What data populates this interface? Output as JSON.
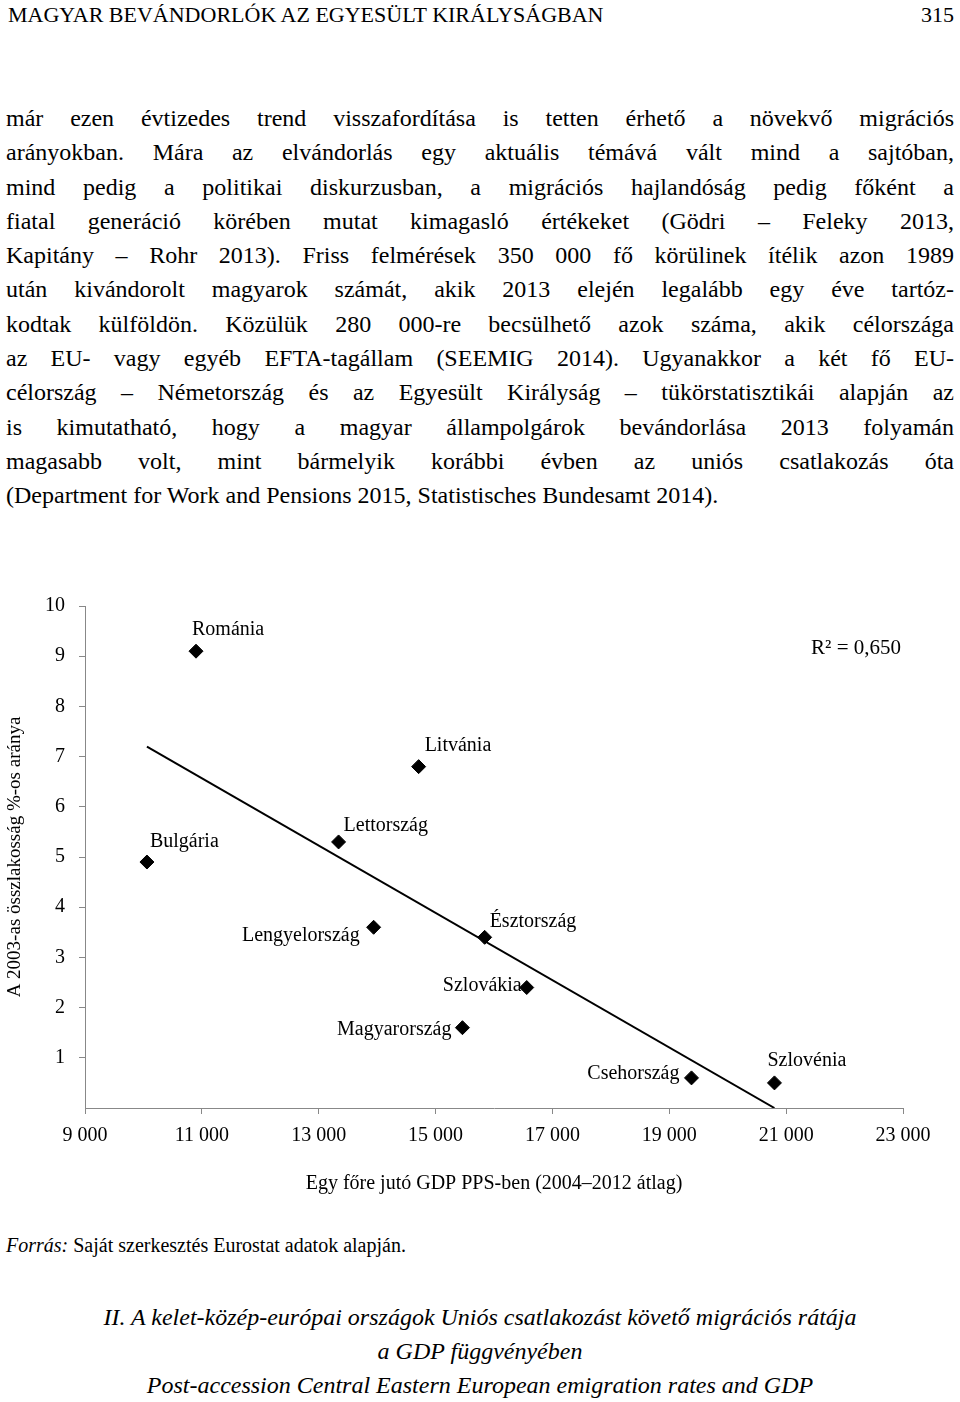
{
  "header": {
    "title": "MAGYAR BEVÁNDORLÓK AZ EGYESÜLT KIRÁLYSÁGBAN",
    "page": "315"
  },
  "body_lines": [
    "már ezen évtizedes trend visszafordítása is tetten érhető a növekvő migrációs",
    "arányokban. Mára az elvándorlás egy aktuális témává vált mind a sajtóban,",
    "mind pedig a politikai diskurzusban, a migrációs hajlandóság pedig főként a",
    "fiatal generáció körében mutat kimagasló értékeket (Gödri – Feleky 2013,",
    "Kapitány – Rohr 2013). Friss felmérések 350 000 fő körülinek ítélik azon 1989",
    "után kivándorolt magyarok számát, akik 2013 elején legalább egy éve tartóz-",
    "kodtak külföldön. Közülük 280 000-re becsülhető azok száma, akik célországa",
    "az EU- vagy egyéb EFTA-tagállam (SEEMIG 2014). Ugyanakkor a két fő EU-",
    "célország – Németország és az Egyesült Királyság – tükörstatisztikái alapján az",
    "is kimutatható, hogy a magyar állampolgárok bevándorlása 2013 folyamán",
    "magasabb volt, mint bármelyik korábbi évben az uniós csatlakozás óta",
    "(Department for Work and Pensions 2015, Statistisches Bundesamt 2014)."
  ],
  "chart_data": {
    "type": "scatter",
    "x_label": "Egy főre jutó GDP PPS-ben (2004–2012 átlag)",
    "y_label": "A 2003-as összlakosság %-os aránya",
    "point_labels": [
      "Románia",
      "Bulgária",
      "Lengyelország",
      "Lettország",
      "Litvánia",
      "Magyarország",
      "Észtország",
      "Szlovákia",
      "Csehország",
      "Szlovénia"
    ],
    "x": [
      10900,
      10060,
      13940,
      13340,
      14710,
      15460,
      15840,
      16560,
      19380,
      20800
    ],
    "values": [
      9.1,
      4.9,
      3.6,
      5.3,
      6.8,
      1.6,
      3.4,
      2.4,
      0.6,
      0.5
    ],
    "color": "#000000",
    "marker": "diamond",
    "trend_line": {
      "x": [
        10060,
        20800
      ],
      "values": [
        7.2,
        0
      ]
    },
    "annotation": "R² = 0,650",
    "xlim": [
      9000,
      23000
    ],
    "xticks": [
      {
        "value": 9000,
        "label": "9 000"
      },
      {
        "value": 11000,
        "label": "11 000"
      },
      {
        "value": 13000,
        "label": "13 000"
      },
      {
        "value": 15000,
        "label": "15 000"
      },
      {
        "value": 17000,
        "label": "17 000"
      },
      {
        "value": 19000,
        "label": "19 000"
      },
      {
        "value": 21000,
        "label": "21 000"
      },
      {
        "value": 23000,
        "label": "23 000"
      }
    ],
    "ylim": [
      0,
      10
    ],
    "yticks": [
      1,
      2,
      3,
      4,
      5,
      6,
      7,
      8,
      9,
      10
    ],
    "grid": false
  },
  "source": {
    "label": "Forrás:",
    "text": "Saját szerkesztés Eurostat adatok alapján."
  },
  "caption": [
    "II. A kelet-közép-európai országok Uniós csatlakozást követő migrációs rátája",
    "a GDP függvényében",
    "Post-accession Central Eastern European emigration rates and GDP"
  ]
}
